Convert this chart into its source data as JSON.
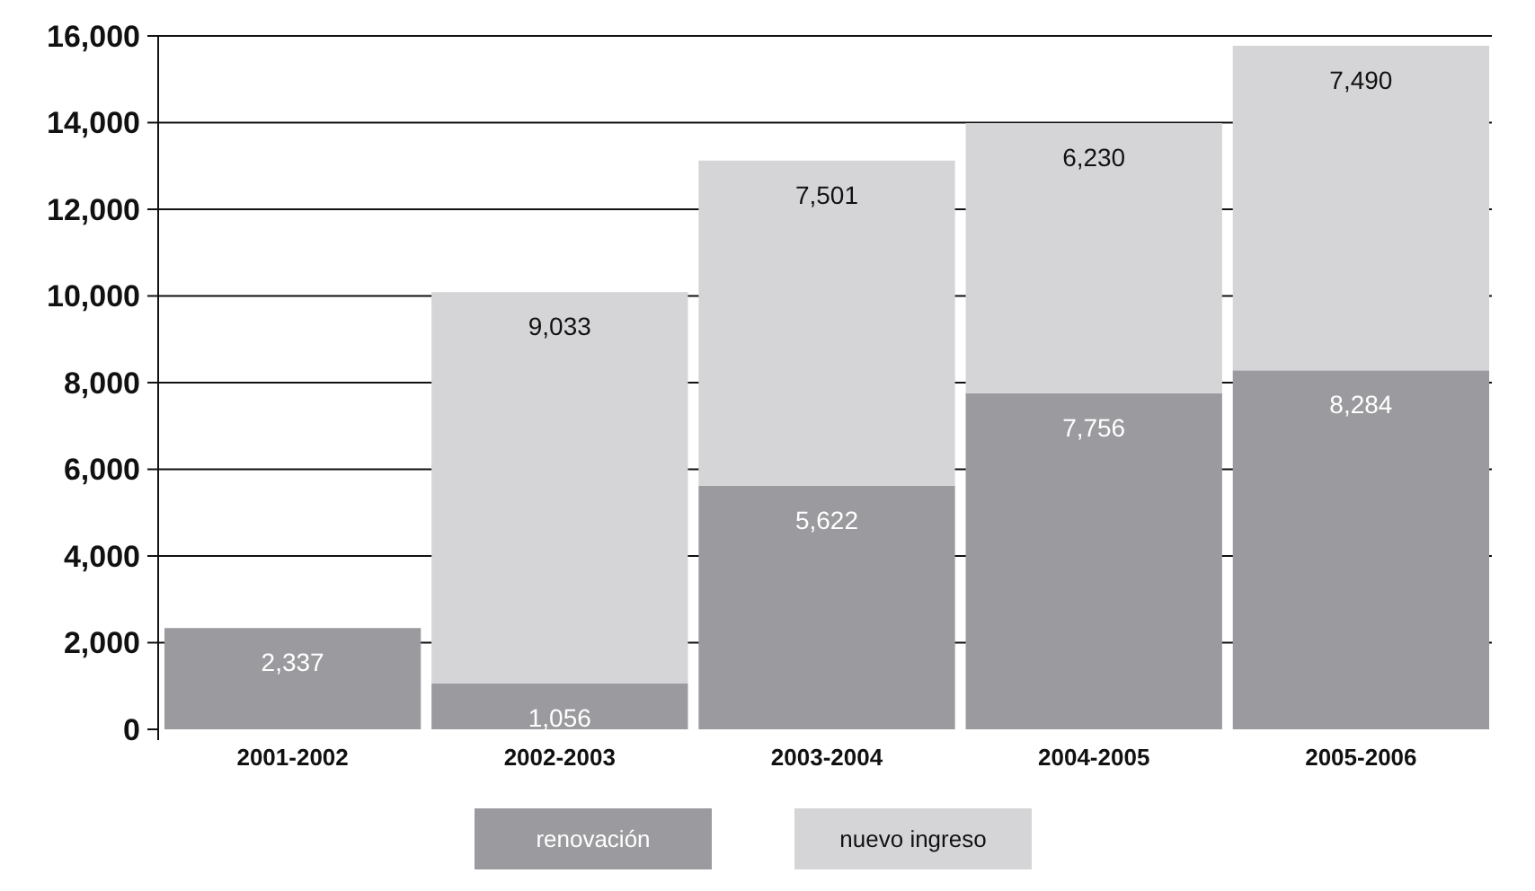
{
  "chart_data": {
    "type": "bar",
    "stacked": true,
    "categories": [
      "2001-2002",
      "2002-2003",
      "2003-2004",
      "2004-2005",
      "2005-2006"
    ],
    "series": [
      {
        "name": "renovación",
        "color": "#9b9b9f",
        "values": [
          2337,
          1056,
          5622,
          7756,
          8284
        ],
        "value_labels": [
          "2,337",
          "1,056",
          "5,622",
          "7,756",
          "8,284"
        ]
      },
      {
        "name": "nuevo ingreso",
        "color": "#d5d5d7",
        "values": [
          null,
          9033,
          7501,
          6230,
          7490
        ],
        "value_labels": [
          null,
          "9,033",
          "7,501",
          "6,230",
          "7,490"
        ]
      }
    ],
    "ylim": [
      0,
      16000
    ],
    "yticks": [
      {
        "value": 0,
        "label": "0"
      },
      {
        "value": 2000,
        "label": "2,000"
      },
      {
        "value": 4000,
        "label": "4,000"
      },
      {
        "value": 6000,
        "label": "6,000"
      },
      {
        "value": 8000,
        "label": "8,000"
      },
      {
        "value": 10000,
        "label": "10,000"
      },
      {
        "value": 12000,
        "label": "12,000"
      },
      {
        "value": 14000,
        "label": "14,000"
      },
      {
        "value": 16000,
        "label": "16,000"
      }
    ],
    "grid": "y",
    "legend": "bottom"
  }
}
